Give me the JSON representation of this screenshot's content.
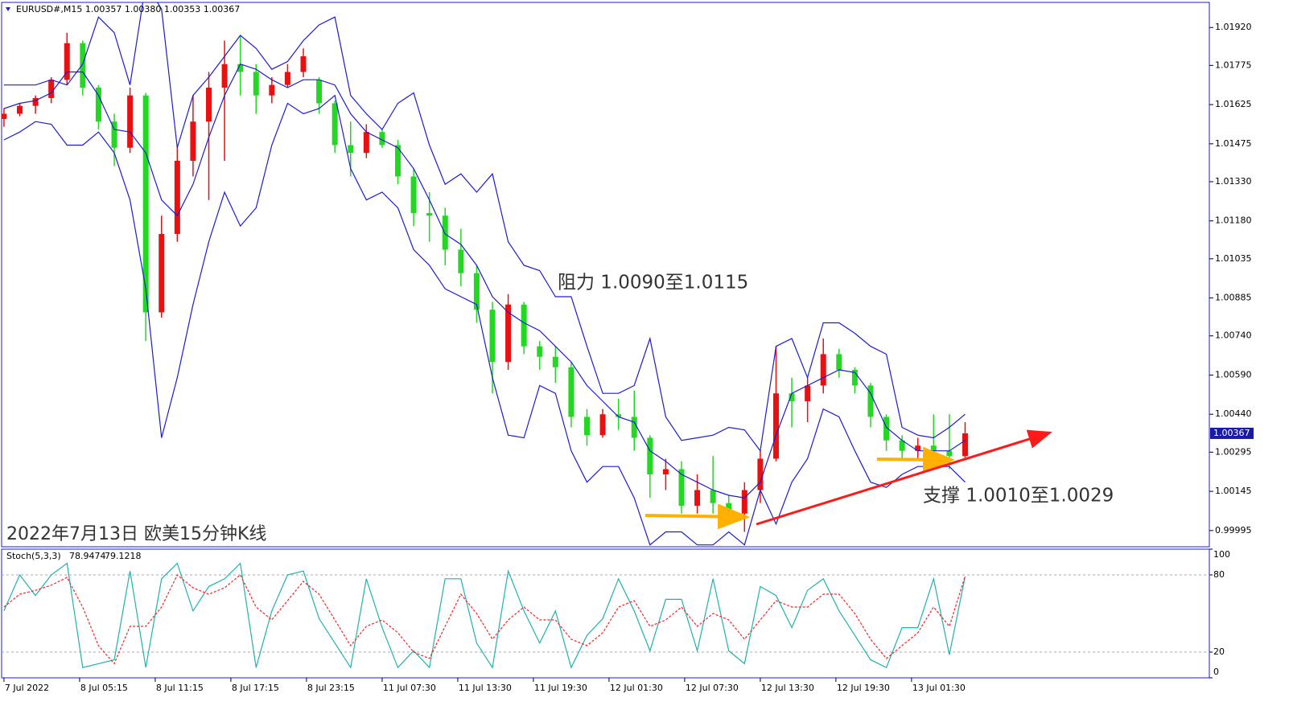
{
  "chart_data": [
    {
      "type": "candlestick",
      "title": "EURUSD#,M15  1.00357 1.00380 1.00353 1.00367",
      "open": [
        1.0157,
        1.0159,
        1.0162,
        1.0165,
        1.0172,
        1.0186,
        1.0169,
        1.0156,
        1.0146,
        1.0166,
        1.0083,
        1.0113,
        1.0141,
        1.0156,
        1.0169,
        1.0178,
        1.0175,
        1.0166,
        1.017,
        1.0175,
        1.0172,
        1.0163,
        1.0147,
        1.0144,
        1.0152,
        1.0147,
        1.0135,
        1.0121,
        1.012,
        1.0107,
        1.0098,
        1.0084,
        1.0064,
        1.0086,
        1.007,
        1.0066,
        1.0062,
        1.0043,
        1.0036,
        1.0044,
        1.0043,
        1.0035,
        1.0021,
        1.0023,
        1.0009,
        1.0015,
        1.001,
        1.0006,
        1.0015,
        1.0027,
        1.0052,
        1.0049,
        1.0055,
        1.0067,
        1.0061,
        1.0055,
        1.0043,
        1.0034,
        1.003,
        1.0032,
        1.003,
        1.0028
      ],
      "high": [
        1.0161,
        1.0163,
        1.0166,
        1.0173,
        1.019,
        1.0187,
        1.017,
        1.0159,
        1.0169,
        1.0167,
        1.012,
        1.0147,
        1.0166,
        1.0175,
        1.0187,
        1.0189,
        1.0178,
        1.0173,
        1.0178,
        1.0184,
        1.0173,
        1.0164,
        1.0156,
        1.0155,
        1.0153,
        1.0149,
        1.0138,
        1.0129,
        1.0123,
        1.0115,
        1.0101,
        1.0087,
        1.009,
        1.0087,
        1.0072,
        1.007,
        1.0064,
        1.0046,
        1.0046,
        1.005,
        1.0053,
        1.0036,
        1.0027,
        1.0026,
        1.0021,
        1.0028,
        1.0013,
        1.0018,
        1.003,
        1.007,
        1.0058,
        1.0058,
        1.0073,
        1.0069,
        1.0062,
        1.0056,
        1.0044,
        1.0036,
        1.0035,
        1.0044,
        1.0044,
        1.0041
      ],
      "low": [
        1.0154,
        1.0158,
        1.0159,
        1.0163,
        1.017,
        1.0166,
        1.0153,
        1.0139,
        1.0144,
        1.0072,
        1.0081,
        1.011,
        1.0135,
        1.0126,
        1.0141,
        1.0166,
        1.0159,
        1.0163,
        1.0169,
        1.0173,
        1.0159,
        1.0144,
        1.0135,
        1.0142,
        1.0146,
        1.0132,
        1.0116,
        1.011,
        1.0101,
        1.0093,
        1.0079,
        1.0052,
        1.0061,
        1.0067,
        1.0061,
        1.0056,
        1.0039,
        1.0032,
        1.0035,
        1.0038,
        1.003,
        1.0012,
        1.0015,
        1.0006,
        1.0006,
        1.0006,
        1.0002,
        0.9999,
        1.001,
        1.0026,
        1.0039,
        1.0041,
        1.0052,
        1.0058,
        1.0052,
        1.0039,
        1.003,
        1.0027,
        1.0027,
        1.0027,
        1.0023,
        1.0027
      ],
      "close": [
        1.0159,
        1.0162,
        1.0165,
        1.0172,
        1.0186,
        1.0169,
        1.0156,
        1.0146,
        1.0166,
        1.0083,
        1.0113,
        1.0141,
        1.0156,
        1.0169,
        1.0178,
        1.0175,
        1.0166,
        1.017,
        1.0175,
        1.0181,
        1.0163,
        1.0147,
        1.0144,
        1.0152,
        1.0147,
        1.0135,
        1.0121,
        1.012,
        1.0107,
        1.0098,
        1.0084,
        1.0064,
        1.0086,
        1.007,
        1.0066,
        1.0062,
        1.0043,
        1.0036,
        1.0044,
        1.0043,
        1.0035,
        1.0021,
        1.0023,
        1.0009,
        1.0015,
        1.001,
        1.0006,
        1.0015,
        1.0027,
        1.0052,
        1.0049,
        1.0055,
        1.0067,
        1.0061,
        1.0055,
        1.0043,
        1.0034,
        1.003,
        1.0032,
        1.003,
        1.0028,
        1.00367
      ],
      "up_color": "#e81010",
      "down_color": "#22d822",
      "series": [
        {
          "color": "#1c1cd0",
          "values": [
            1.017,
            1.017,
            1.017,
            1.0172,
            1.017,
            1.0178,
            1.0196,
            1.019,
            1.017,
            1.0209,
            1.0199,
            1.0146,
            1.0166,
            1.0173,
            1.0181,
            1.0189,
            1.0184,
            1.0176,
            1.0179,
            1.0187,
            1.0193,
            1.0196,
            1.0166,
            1.0159,
            1.0153,
            1.0163,
            1.0167,
            1.0147,
            1.0132,
            1.0136,
            1.0129,
            1.0136,
            1.011,
            1.0101,
            1.0099,
            1.0089,
            1.0089,
            1.007,
            1.0052,
            1.0052,
            1.0055,
            1.0073,
            1.0043,
            1.0034,
            1.0035,
            1.0036,
            1.0039,
            1.0038,
            1.003,
            1.007,
            1.0073,
            1.0058,
            1.0079,
            1.0079,
            1.0075,
            1.007,
            1.0067,
            1.0039,
            1.0036,
            1.0035,
            1.0039,
            1.0044
          ]
        },
        {
          "color": "#1c1cd0",
          "values": [
            1.0161,
            1.0163,
            1.0164,
            1.0167,
            1.0175,
            1.0175,
            1.0166,
            1.0153,
            1.0152,
            1.0144,
            1.0126,
            1.012,
            1.0132,
            1.015,
            1.0166,
            1.0178,
            1.0176,
            1.0172,
            1.0169,
            1.0172,
            1.0172,
            1.017,
            1.0159,
            1.0152,
            1.0149,
            1.0146,
            1.0138,
            1.0126,
            1.0113,
            1.0109,
            1.0101,
            1.0089,
            1.0083,
            1.0079,
            1.0076,
            1.007,
            1.0064,
            1.0055,
            1.0049,
            1.0043,
            1.0041,
            1.003,
            1.0026,
            1.0021,
            1.0018,
            1.0015,
            1.0013,
            1.0012,
            1.0018,
            1.0036,
            1.0052,
            1.0055,
            1.0058,
            1.0061,
            1.006,
            1.0052,
            1.0039,
            1.0034,
            1.003,
            1.003,
            1.003,
            1.0034
          ]
        },
        {
          "color": "#1c1cd0",
          "values": [
            1.0149,
            1.0152,
            1.0156,
            1.0155,
            1.0147,
            1.0147,
            1.0152,
            1.0144,
            1.0126,
            1.0092,
            1.0035,
            1.0058,
            1.0086,
            1.011,
            1.0129,
            1.0116,
            1.0123,
            1.0147,
            1.0163,
            1.0159,
            1.0161,
            1.0166,
            1.0138,
            1.0126,
            1.0129,
            1.0123,
            1.0107,
            1.0101,
            1.0092,
            1.0089,
            1.0086,
            1.0058,
            1.0036,
            1.0035,
            1.0055,
            1.0052,
            1.003,
            1.0018,
            1.0024,
            1.0024,
            1.0012,
            0.9994,
            0.9999,
            0.9999,
            0.9994,
            0.9994,
            0.9999,
            0.9994,
            1.0015,
            1.0002,
            1.0018,
            1.0027,
            1.0046,
            1.0043,
            1.003,
            1.0018,
            1.0016,
            1.0021,
            1.0024,
            1.0024,
            1.0024,
            1.0018
          ]
        }
      ],
      "ylim": [
        0.99933,
        1.02016
      ],
      "yticks": [
        {
          "value": 0.99995,
          "label": "0.99995"
        },
        {
          "value": 1.00145,
          "label": "1.00145"
        },
        {
          "value": 1.00295,
          "label": "1.00295"
        },
        {
          "value": 1.0044,
          "label": "1.00440"
        },
        {
          "value": 1.0059,
          "label": "1.00590"
        },
        {
          "value": 1.0074,
          "label": "1.00740"
        },
        {
          "value": 1.00885,
          "label": "1.00885"
        },
        {
          "value": 1.01035,
          "label": "1.01035"
        },
        {
          "value": 1.0118,
          "label": "1.01180"
        },
        {
          "value": 1.0133,
          "label": "1.01330"
        },
        {
          "value": 1.01475,
          "label": "1.01475"
        },
        {
          "value": 1.01625,
          "label": "1.01625"
        },
        {
          "value": 1.01775,
          "label": "1.01775"
        },
        {
          "value": 1.0192,
          "label": "1.01920"
        }
      ],
      "xlim": [
        -0.15,
        76.5
      ],
      "xticks": [
        {
          "value": 0,
          "label": "7 Jul 2022"
        },
        {
          "value": 4.8,
          "label": "8 Jul 05:15"
        },
        {
          "value": 9.6,
          "label": "8 Jul 11:15"
        },
        {
          "value": 14.4,
          "label": "8 Jul 17:15"
        },
        {
          "value": 19.2,
          "label": "8 Jul 23:15"
        },
        {
          "value": 24,
          "label": "11 Jul 07:30"
        },
        {
          "value": 28.8,
          "label": "11 Jul 13:30"
        },
        {
          "value": 33.6,
          "label": "11 Jul 19:30"
        },
        {
          "value": 38.4,
          "label": "12 Jul 01:30"
        },
        {
          "value": 43.2,
          "label": "12 Jul 07:30"
        },
        {
          "value": 48,
          "label": "12 Jul 13:30"
        },
        {
          "value": 52.8,
          "label": "12 Jul 19:30"
        },
        {
          "value": 57.6,
          "label": "13 Jul 01:30"
        }
      ],
      "current_price": 1.00367,
      "annotations": [
        "阻力 1.0090至1.0115",
        "支撑 1.0010至1.0029",
        "2022年7月13日 欧美15分钟K线"
      ]
    },
    {
      "type": "line",
      "title": "Stoch(5,3,3)",
      "series": [
        {
          "color": "#20b2aa",
          "values": [
            52,
            80,
            64,
            80,
            89,
            8,
            11,
            14,
            83,
            8,
            77,
            89,
            52,
            71,
            77,
            89,
            8,
            52,
            80,
            83,
            46,
            27,
            8,
            77,
            39,
            8,
            21,
            8,
            77,
            77,
            27,
            8,
            83,
            52,
            27,
            52,
            8,
            33,
            46,
            77,
            52,
            21,
            61,
            61,
            21,
            77,
            21,
            11,
            71,
            64,
            39,
            68,
            77,
            52,
            33,
            14,
            8,
            39,
            39,
            77,
            18,
            78.9474
          ]
        },
        {
          "color": "#ff2020",
          "dashed": true,
          "values": [
            55,
            65,
            68,
            72,
            78,
            55,
            25,
            11,
            40,
            40,
            55,
            80,
            70,
            65,
            70,
            80,
            55,
            45,
            60,
            75,
            65,
            45,
            25,
            40,
            45,
            35,
            20,
            15,
            40,
            65,
            50,
            30,
            45,
            55,
            45,
            45,
            30,
            25,
            35,
            55,
            60,
            40,
            45,
            55,
            40,
            50,
            45,
            30,
            45,
            60,
            55,
            55,
            65,
            65,
            50,
            30,
            15,
            25,
            35,
            55,
            40,
            79.1218
          ]
        }
      ],
      "ylim": [
        0,
        100
      ],
      "yticks": [
        0,
        20,
        80,
        100
      ],
      "levels": [
        20,
        80
      ]
    }
  ]
}
